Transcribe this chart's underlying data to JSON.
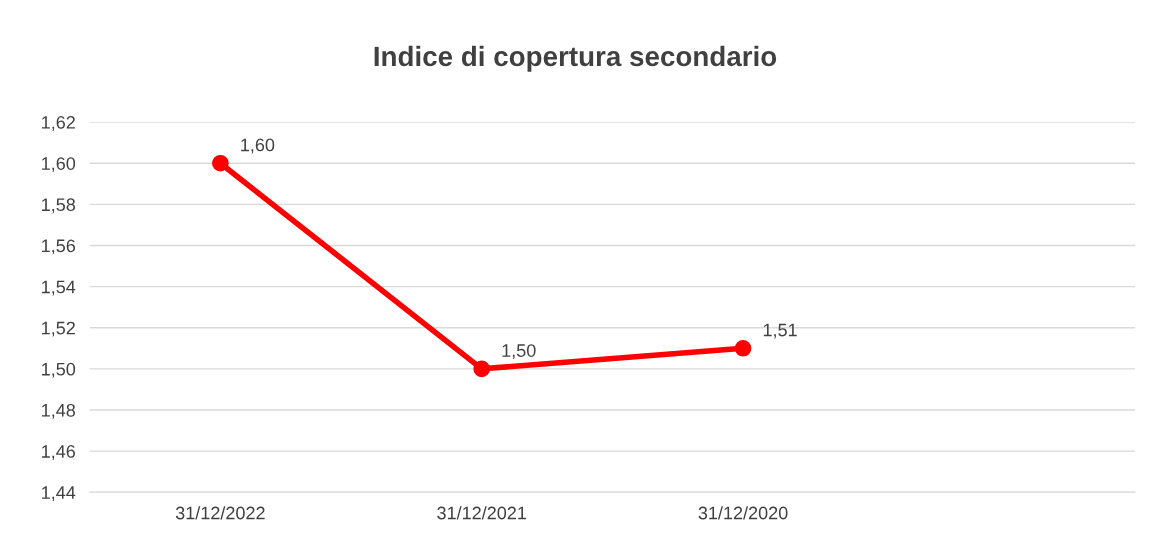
{
  "chart_data": {
    "type": "line",
    "title": "Indice di copertura secondario",
    "categories": [
      "31/12/2022",
      "31/12/2021",
      "31/12/2020",
      null
    ],
    "series": [
      {
        "color": "#ff0000",
        "values": [
          1.6,
          1.5,
          1.51,
          null
        ],
        "value_labels": [
          "1,60",
          "1,50",
          "1,51",
          null
        ]
      }
    ],
    "ylim": [
      1.44,
      1.62
    ],
    "yticks": [
      {
        "value": 1.44,
        "label": "1,44"
      },
      {
        "value": 1.46,
        "label": "1,46"
      },
      {
        "value": 1.48,
        "label": "1,48"
      },
      {
        "value": 1.5,
        "label": "1,50"
      },
      {
        "value": 1.52,
        "label": "1,52"
      },
      {
        "value": 1.54,
        "label": "1,54"
      },
      {
        "value": 1.56,
        "label": "1,56"
      },
      {
        "value": 1.58,
        "label": "1,58"
      },
      {
        "value": 1.6,
        "label": "1,60"
      },
      {
        "value": 1.62,
        "label": "1,62"
      }
    ],
    "grid": "y",
    "legend": false,
    "marker": "circle",
    "line_style": "solid"
  }
}
